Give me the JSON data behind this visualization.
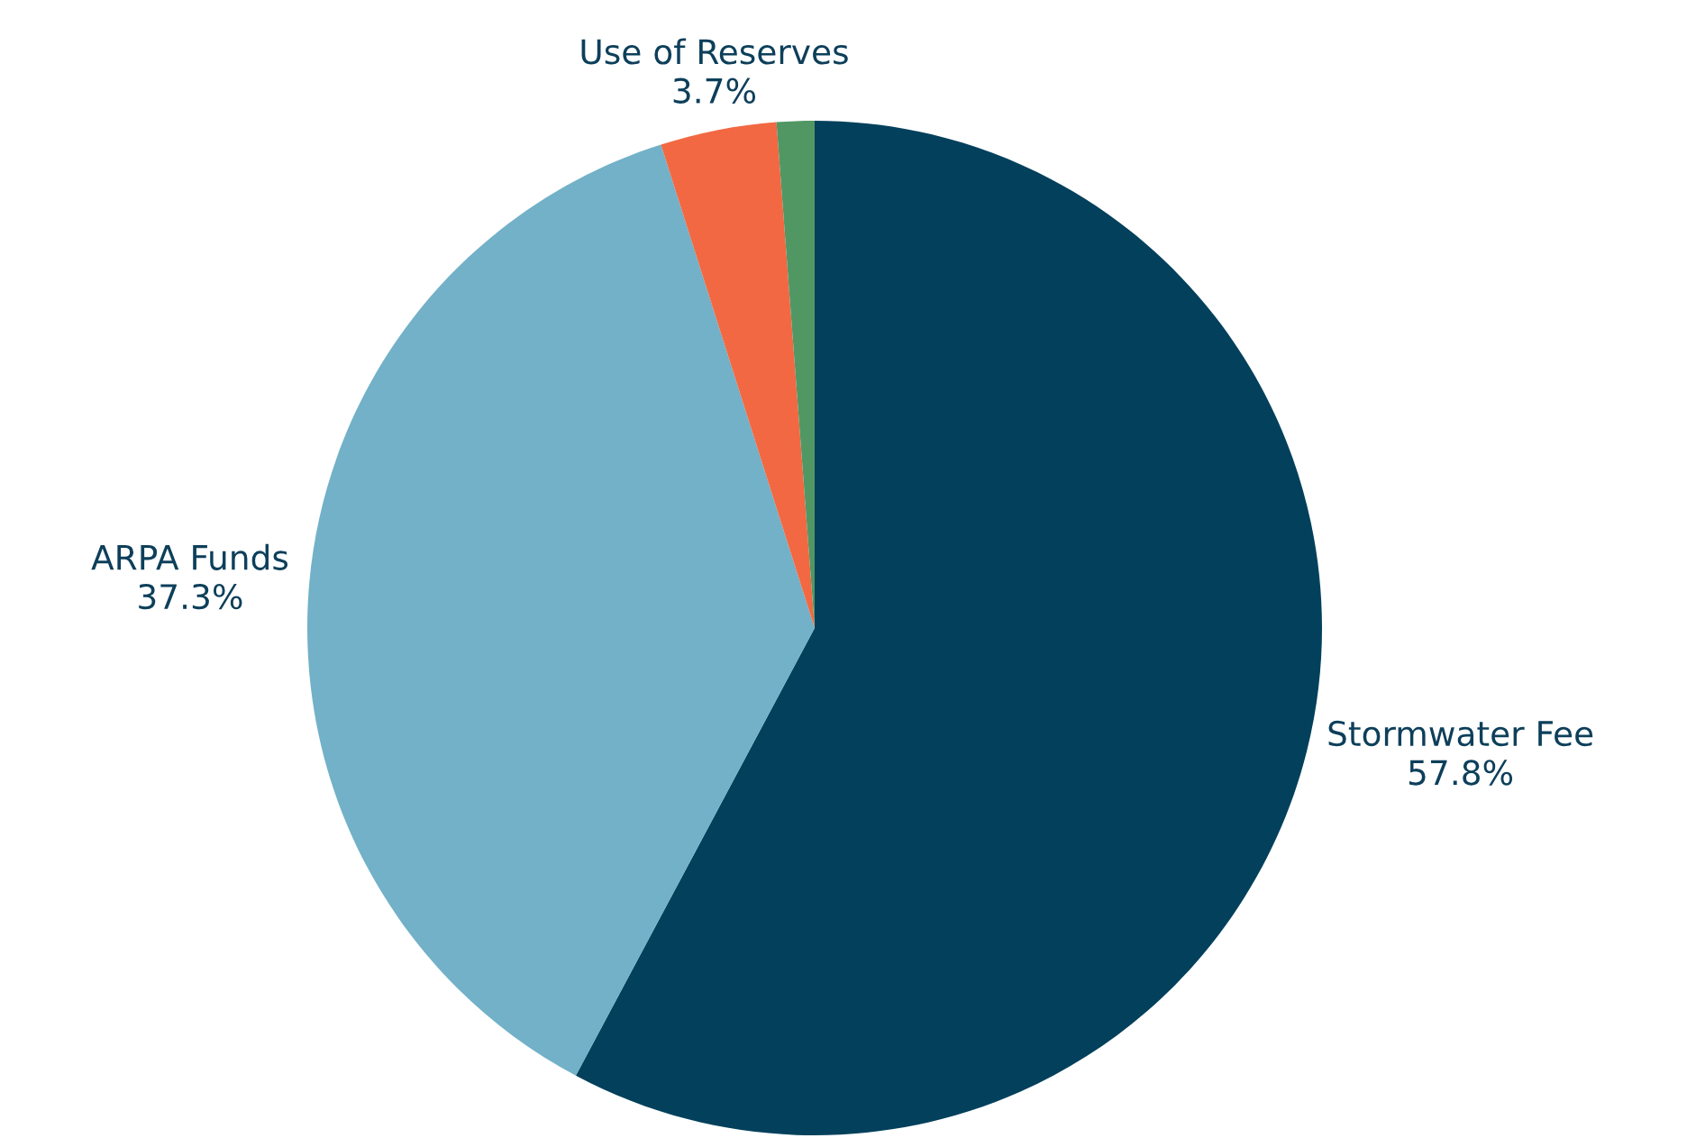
{
  "chart_data": {
    "type": "pie",
    "categories": [
      "Stormwater Fee",
      "ARPA Funds",
      "Use of Reserves",
      null
    ],
    "values": [
      57.8,
      37.3,
      3.7,
      1.2
    ],
    "value_labels": [
      "57.8%",
      "37.3%",
      "3.7%",
      null
    ],
    "colors": [
      "#02405c",
      "#72b1c8",
      "#f26842",
      "#519764"
    ]
  }
}
